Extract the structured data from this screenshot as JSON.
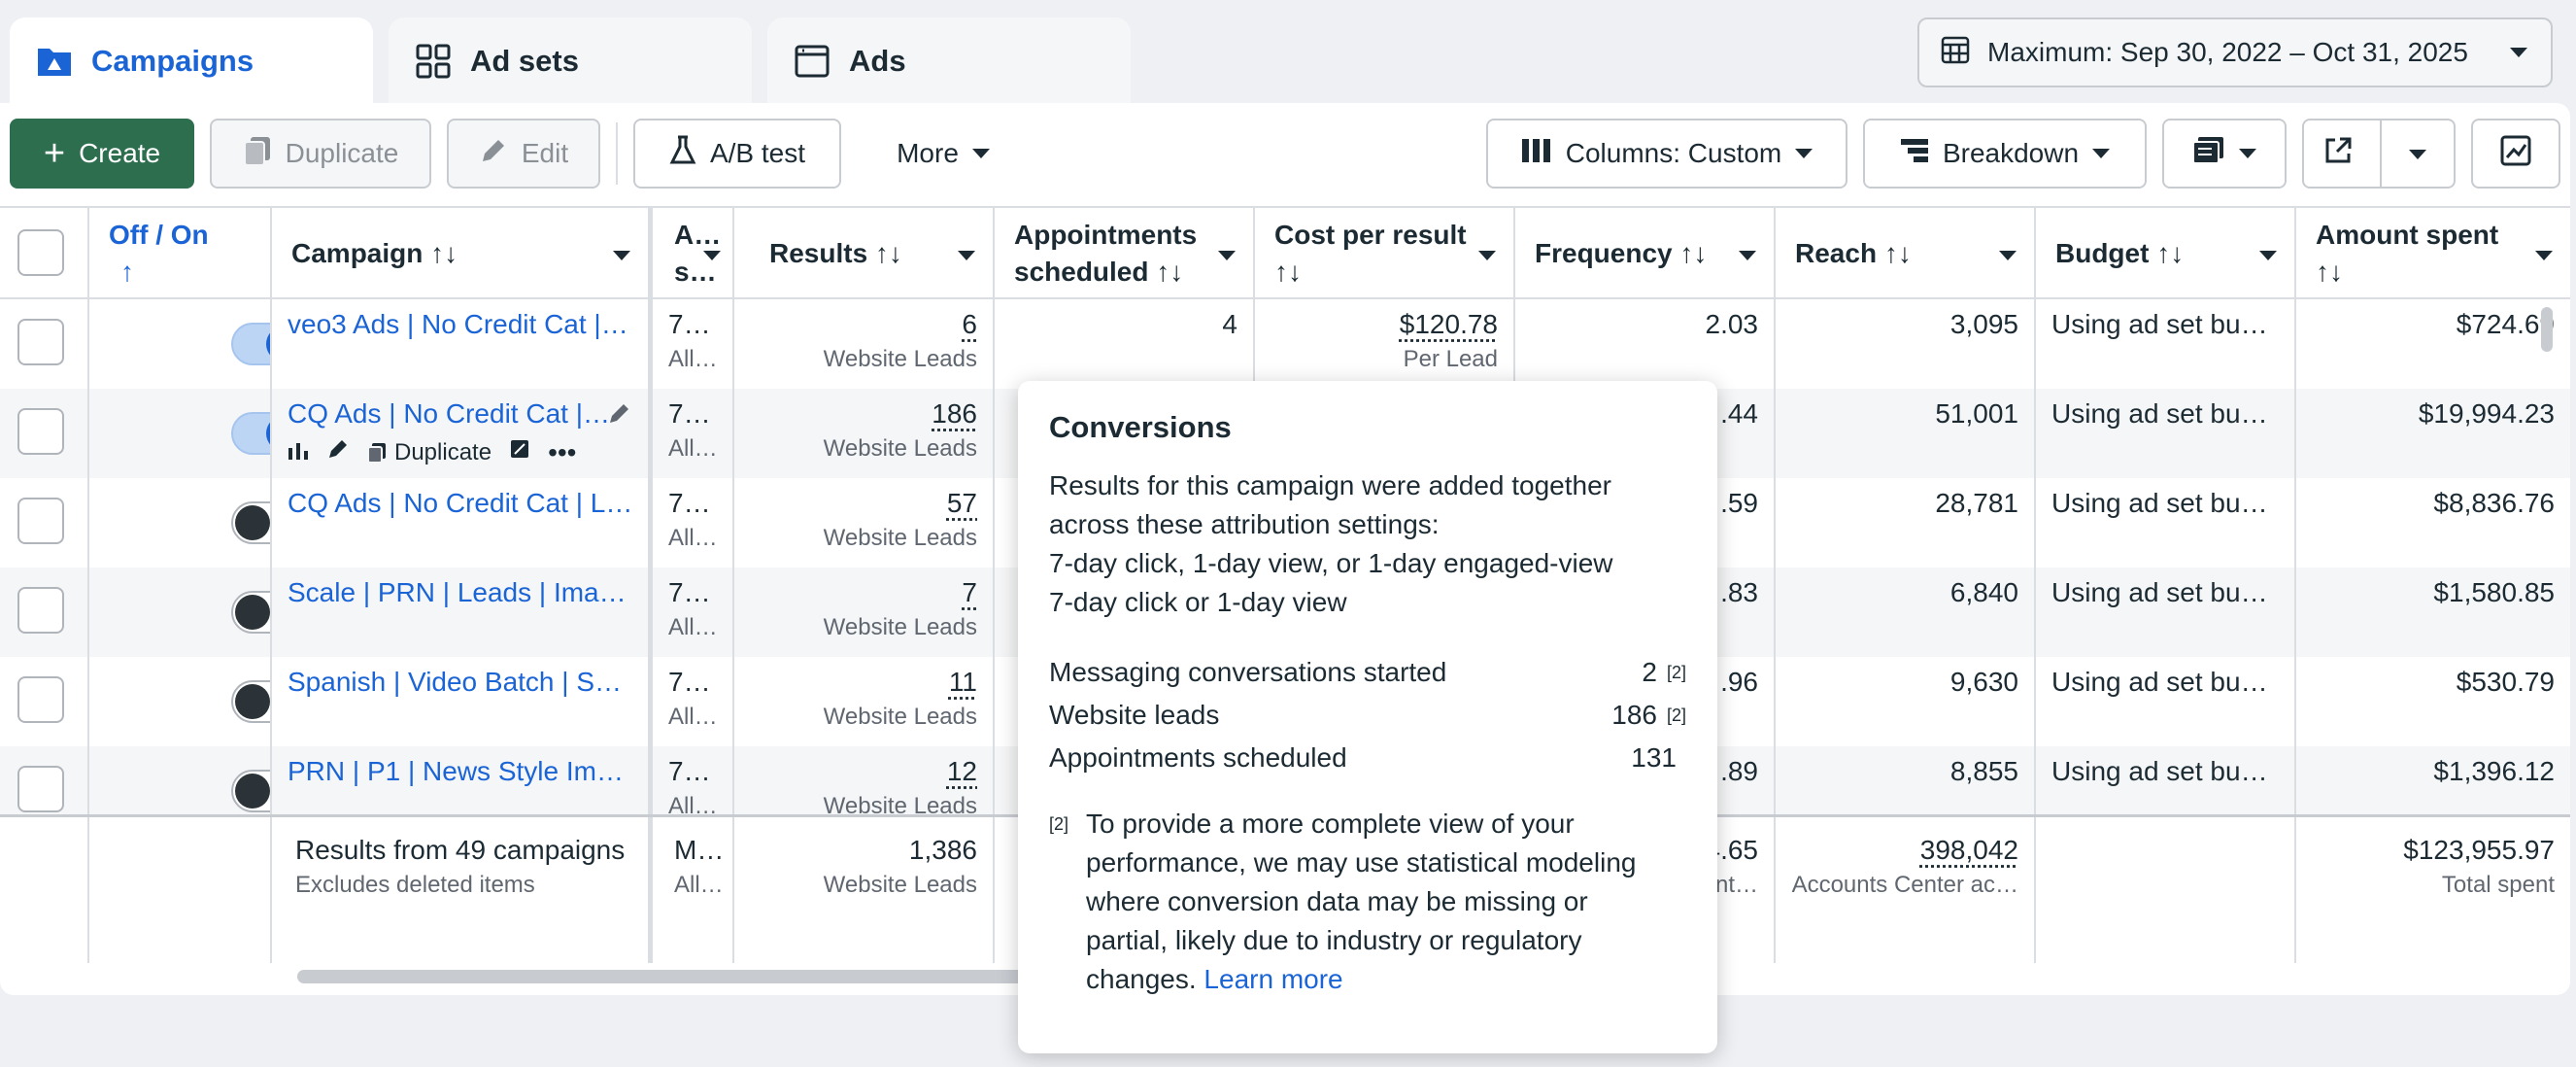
{
  "tabs": [
    {
      "label": "Campaigns",
      "icon": "folder-icon"
    },
    {
      "label": "Ad sets",
      "icon": "grid-icon"
    },
    {
      "label": "Ads",
      "icon": "window-icon"
    }
  ],
  "date_range": "Maximum: Sep 30, 2022 – Oct 31, 2025",
  "toolbar": {
    "create": "Create",
    "duplicate": "Duplicate",
    "edit": "Edit",
    "ab_test": "A/B test",
    "more": "More",
    "columns": "Columns: Custom",
    "breakdown": "Breakdown"
  },
  "headers": {
    "onoff": "Off / On",
    "onoff_sort": "↑",
    "campaign": "Campaign ↑↓",
    "attribution": "A…",
    "attribution2": "s…",
    "results": "Results ↑↓",
    "appointments": "Appointments",
    "appointments2": "scheduled ↑↓",
    "cost": "Cost per result",
    "cost2": "↑↓",
    "frequency": "Frequency ↑↓",
    "reach": "Reach ↑↓",
    "budget": "Budget ↑↓",
    "amount": "Amount spent",
    "amount2": "↑↓"
  },
  "rows": [
    {
      "name": "veo3 Ads | No Credit Cat |…",
      "on": true,
      "attr": "7…",
      "attr_sub": "All…",
      "results": "6",
      "results_sub": "Website Leads",
      "appointments": "4",
      "cost": "$120.78",
      "cost_sub": "Per Lead",
      "frequency": "2.03",
      "reach": "3,095",
      "budget": "Using ad set bu…",
      "amount": "$724.69"
    },
    {
      "name": "CQ Ads | No Credit Cat |…",
      "on": true,
      "attr": "7…",
      "attr_sub": "All…",
      "results": "186",
      "results_sub": "Website Leads",
      "appointments": "",
      "cost": "",
      "cost_sub": "",
      "frequency": ".44",
      "reach": "51,001",
      "budget": "Using ad set bu…",
      "amount": "$19,994.23"
    },
    {
      "name": "CQ Ads | No Credit Cat | L…",
      "on": false,
      "attr": "7…",
      "attr_sub": "All…",
      "results": "57",
      "results_sub": "Website Leads",
      "appointments": "",
      "cost": "",
      "cost_sub": "",
      "frequency": ".59",
      "reach": "28,781",
      "budget": "Using ad set bu…",
      "amount": "$8,836.76"
    },
    {
      "name": "Scale | PRN | Leads | Ima…",
      "on": false,
      "attr": "7…",
      "attr_sub": "All…",
      "results": "7",
      "results_sub": "Website Leads",
      "appointments": "",
      "cost": "",
      "cost_sub": "",
      "frequency": ".83",
      "reach": "6,840",
      "budget": "Using ad set bu…",
      "amount": "$1,580.85"
    },
    {
      "name": "Spanish | Video Batch | S…",
      "on": false,
      "attr": "7…",
      "attr_sub": "All…",
      "results": "11",
      "results_sub": "Website Leads",
      "appointments": "",
      "cost": "",
      "cost_sub": "",
      "frequency": ".96",
      "reach": "9,630",
      "budget": "Using ad set bu…",
      "amount": "$530.79"
    },
    {
      "name": "PRN | P1 | News Style Im…",
      "on": false,
      "attr": "7…",
      "attr_sub": "All…",
      "results": "12",
      "results_sub": "Website Leads",
      "appointments": "",
      "cost": "",
      "cost_sub": "",
      "frequency": ".89",
      "reach": "8,855",
      "budget": "Using ad set bu…",
      "amount": "$1,396.12"
    }
  ],
  "row_actions": {
    "duplicate": "Duplicate"
  },
  "summary": {
    "title": "Results from 49 campaigns",
    "subtitle": "Excludes deleted items",
    "attr": "M…",
    "attr_sub": "All…",
    "results": "1,386",
    "results_sub": "Website Leads",
    "frequency": "4.65",
    "frequency_sub": "nt…",
    "reach": "398,042",
    "reach_sub": "Accounts Center ac…",
    "amount": "$123,955.97",
    "amount_sub": "Total spent"
  },
  "tooltip": {
    "title": "Conversions",
    "lines": [
      "Results for this campaign were added together",
      "across these attribution settings:",
      "7-day click, 1-day view, or 1-day engaged-view",
      "7-day click or 1-day view"
    ],
    "metrics": [
      {
        "label": "Messaging conversations started",
        "value": "2",
        "note": "[2]"
      },
      {
        "label": "Website leads",
        "value": "186",
        "note": "[2]"
      },
      {
        "label": "Appointments scheduled",
        "value": "131",
        "note": ""
      }
    ],
    "footnote_marker": "[2]",
    "footnote": [
      "To provide a more complete view of your",
      "performance, we may use statistical modeling",
      "where conversion data may be missing or",
      "partial, likely due to industry or regulatory"
    ],
    "footnote_last": "changes.",
    "learn_more": "Learn more"
  },
  "colors": {
    "accent": "#1a64d6",
    "primary_button": "#2c6e4e"
  }
}
